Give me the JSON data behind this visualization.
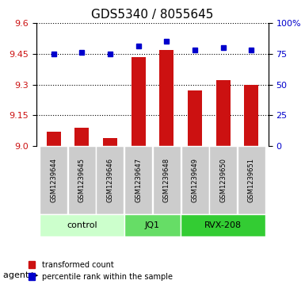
{
  "title": "GDS5340 / 8055645",
  "samples": [
    "GSM1239644",
    "GSM1239645",
    "GSM1239646",
    "GSM1239647",
    "GSM1239648",
    "GSM1239649",
    "GSM1239650",
    "GSM1239651"
  ],
  "red_values": [
    9.07,
    9.09,
    9.04,
    9.435,
    9.47,
    9.27,
    9.32,
    9.3
  ],
  "blue_values": [
    75,
    76,
    75,
    81,
    85,
    78,
    80,
    78
  ],
  "ylim_left": [
    9.0,
    9.6
  ],
  "ylim_right": [
    0,
    100
  ],
  "yticks_left": [
    9.0,
    9.15,
    9.3,
    9.45,
    9.6
  ],
  "yticks_right": [
    0,
    25,
    50,
    75,
    100
  ],
  "ytick_labels_right": [
    "0",
    "25",
    "50",
    "75",
    "100%"
  ],
  "groups": [
    {
      "label": "control",
      "start": 0,
      "end": 3,
      "color": "#ccffcc"
    },
    {
      "label": "JQ1",
      "start": 3,
      "end": 5,
      "color": "#66dd66"
    },
    {
      "label": "RVX-208",
      "start": 5,
      "end": 8,
      "color": "#33cc33"
    }
  ],
  "bar_color": "#cc1111",
  "dot_color": "#0000cc",
  "grid_color": "#000000",
  "background_plot": "#ffffff",
  "background_label": "#cccccc",
  "agent_label": "agent",
  "legend_red": "transformed count",
  "legend_blue": "percentile rank within the sample",
  "title_fontsize": 11,
  "tick_fontsize": 8,
  "bar_width": 0.5
}
